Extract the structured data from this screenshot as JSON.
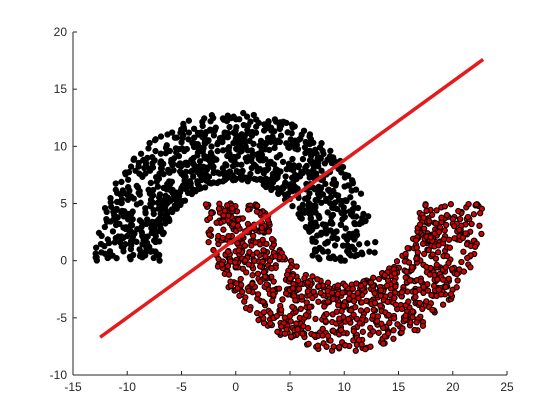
{
  "chart_data": {
    "type": "scatter",
    "title": "",
    "xlabel": "",
    "ylabel": "",
    "xlim": [
      -15,
      25
    ],
    "ylim": [
      -10,
      20
    ],
    "xticks": [
      -15,
      -10,
      -5,
      0,
      5,
      10,
      15,
      20,
      25
    ],
    "yticks": [
      -10,
      -5,
      0,
      5,
      10,
      15,
      20
    ],
    "grid": false,
    "legend": "none",
    "series": [
      {
        "kind": "half-moon",
        "color": "#000000",
        "marker_edge": "#000000",
        "marker_face": "#000000",
        "center": [
          0,
          0
        ],
        "radius_inner": 7,
        "radius_outer": 13,
        "angle_range_deg": [
          0,
          180
        ],
        "count": 1000
      },
      {
        "kind": "half-moon",
        "color": "#e00000",
        "marker_edge": "#000000",
        "marker_face": "#d40000",
        "center": [
          10,
          5
        ],
        "radius_inner": 7,
        "radius_outer": 13,
        "angle_range_deg": [
          180,
          360
        ],
        "count": 1000
      },
      {
        "kind": "line",
        "color": "#e51b1b",
        "x": [
          -12.5,
          22.8
        ],
        "y": [
          -6.7,
          17.6
        ]
      }
    ]
  }
}
